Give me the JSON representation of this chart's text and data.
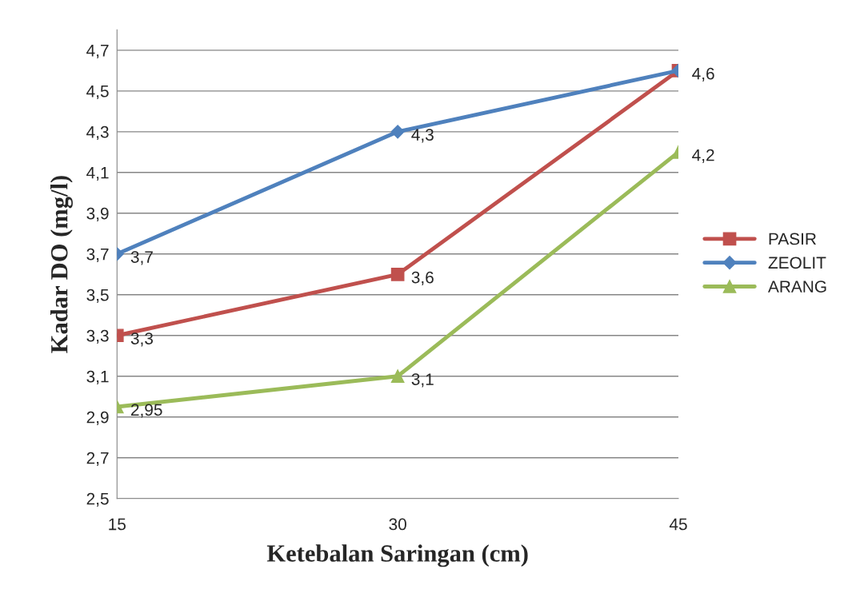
{
  "chart_data": {
    "type": "line",
    "xlabel": "Ketebalan Saringan (cm)",
    "ylabel": "Kadar DO (mg/l)",
    "x": [
      15,
      30,
      45
    ],
    "xlim": [
      15,
      45
    ],
    "xticks": [
      15,
      30,
      45
    ],
    "ylim": [
      2.5,
      4.8
    ],
    "yticks": [
      {
        "value": 2.5,
        "label": "2,5"
      },
      {
        "value": 2.7,
        "label": "2,7"
      },
      {
        "value": 2.9,
        "label": "2,9"
      },
      {
        "value": 3.1,
        "label": "3,1"
      },
      {
        "value": 3.3,
        "label": "3,3"
      },
      {
        "value": 3.5,
        "label": "3,5"
      },
      {
        "value": 3.7,
        "label": "3,7"
      },
      {
        "value": 3.9,
        "label": "3,9"
      },
      {
        "value": 4.1,
        "label": "4,1"
      },
      {
        "value": 4.3,
        "label": "4,3"
      },
      {
        "value": 4.5,
        "label": "4,5"
      },
      {
        "value": 4.7,
        "label": "4,7"
      }
    ],
    "grid": "y",
    "legend": "right",
    "series": [
      {
        "name": "PASIR",
        "color": "#c0504d",
        "marker": "square",
        "values": [
          3.3,
          3.6,
          4.6
        ],
        "value_labels": [
          "3,3",
          "3,6",
          "4,6"
        ]
      },
      {
        "name": "ZEOLIT",
        "color": "#4f81bd",
        "marker": "diamond",
        "values": [
          3.7,
          4.3,
          4.6
        ],
        "value_labels": [
          "3,7",
          "4,3",
          null
        ]
      },
      {
        "name": "ARANG",
        "color": "#9bbb59",
        "marker": "triangle",
        "values": [
          2.95,
          3.1,
          4.2
        ],
        "value_labels": [
          "2,95",
          "3,1",
          "4,2"
        ]
      }
    ]
  }
}
